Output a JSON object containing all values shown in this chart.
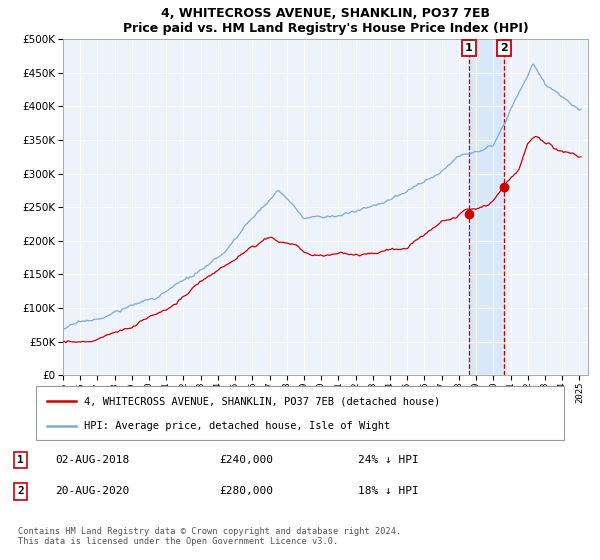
{
  "title": "4, WHITECROSS AVENUE, SHANKLIN, PO37 7EB",
  "subtitle": "Price paid vs. HM Land Registry's House Price Index (HPI)",
  "legend_line1": "4, WHITECROSS AVENUE, SHANKLIN, PO37 7EB (detached house)",
  "legend_line2": "HPI: Average price, detached house, Isle of Wight",
  "annotation1_date": "02-AUG-2018",
  "annotation1_price": "£240,000",
  "annotation1_hpi": "24% ↓ HPI",
  "annotation2_date": "20-AUG-2020",
  "annotation2_price": "£280,000",
  "annotation2_hpi": "18% ↓ HPI",
  "sale1_year": 2018.58,
  "sale1_value": 240000,
  "sale2_year": 2020.63,
  "sale2_value": 280000,
  "ylim": [
    0,
    500000
  ],
  "yticks": [
    0,
    50000,
    100000,
    150000,
    200000,
    250000,
    300000,
    350000,
    400000,
    450000,
    500000
  ],
  "hpi_color": "#7aaadd",
  "price_color": "#cc0000",
  "bg_color": "#eef2fa",
  "shade_color": "#d8e8f8",
  "footnote": "Contains HM Land Registry data © Crown copyright and database right 2024.\nThis data is licensed under the Open Government Licence v3.0."
}
